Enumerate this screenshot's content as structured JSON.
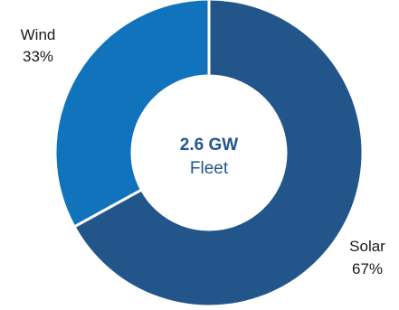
{
  "chart_data": {
    "type": "pie",
    "style": "donut",
    "center": {
      "value": "2.6 GW",
      "label": "Fleet"
    },
    "categories": [
      "Solar",
      "Wind"
    ],
    "values": [
      67,
      33
    ],
    "value_labels": [
      "67%",
      "33%"
    ],
    "colors": [
      "#22568b",
      "#1273bd"
    ],
    "text_color": "#22568b"
  }
}
